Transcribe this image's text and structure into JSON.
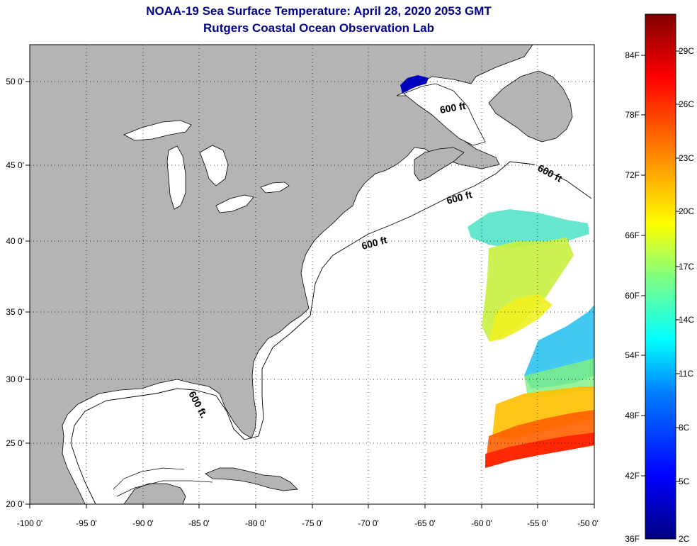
{
  "title": {
    "line1": "NOAA-19 Sea Surface Temperature:  April 28, 2020 2053 GMT",
    "line2": "Rutgers Coastal Ocean Observation Lab"
  },
  "colors": {
    "land": "#b4b4b4",
    "ocean": "#ffffff",
    "frame": "#000000",
    "title": "#00008b"
  },
  "axes": {
    "lon_ticks": [
      "-100 0'",
      "-95 0'",
      "-90 0'",
      "-85 0'",
      "-80 0'",
      "-75 0'",
      "-70 0'",
      "-65 0'",
      "-60 0'",
      "-55 0'",
      "-50 0'"
    ],
    "lat_ticks": [
      "50 0'",
      "45 0'",
      "40 0'",
      "35 0'",
      "30 0'",
      "25 0'",
      "20 0'"
    ]
  },
  "contour_labels": [
    "600 ft",
    "600 ft",
    "600 ft",
    "600 ft",
    "600 ft."
  ],
  "colorbar": {
    "fahrenheit": [
      "84F",
      "78F",
      "72F",
      "66F",
      "60F",
      "54F",
      "48F",
      "42F",
      "36F"
    ],
    "celsius": [
      "29C",
      "26C",
      "23C",
      "20C",
      "17C",
      "14C",
      "11C",
      "8C",
      "5C",
      "2C"
    ]
  }
}
